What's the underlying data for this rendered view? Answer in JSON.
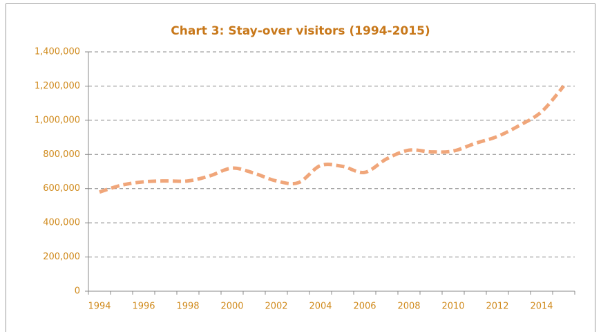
{
  "chart_data": {
    "type": "line",
    "title": "Chart 3: Stay-over visitors (1994-2015)",
    "categories": [
      "1994",
      null,
      "1996",
      null,
      "1998",
      null,
      "2000",
      null,
      "2002",
      null,
      "2004",
      null,
      "2006",
      null,
      "2008",
      null,
      "2010",
      null,
      "2012",
      null,
      "2014",
      null
    ],
    "series": [
      {
        "name": "Stay-over visitors",
        "color": "#f0a67a",
        "values": [
          580000,
          620000,
          640000,
          645000,
          645000,
          675000,
          720000,
          690000,
          645000,
          635000,
          735000,
          730000,
          695000,
          775000,
          825000,
          815000,
          820000,
          865000,
          905000,
          970000,
          1050000,
          1200000
        ]
      }
    ],
    "ylim": [
      0,
      1400000
    ],
    "yticks": [
      {
        "value": 0,
        "label": "0"
      },
      {
        "value": 200000,
        "label": "200,000"
      },
      {
        "value": 400000,
        "label": "400,000"
      },
      {
        "value": 600000,
        "label": "600,000"
      },
      {
        "value": 800000,
        "label": "800,000"
      },
      {
        "value": 1000000,
        "label": "1,000,000"
      },
      {
        "value": 1200000,
        "label": "1,200,000"
      },
      {
        "value": 1400000,
        "label": "1,400,000"
      }
    ],
    "grid": true
  }
}
